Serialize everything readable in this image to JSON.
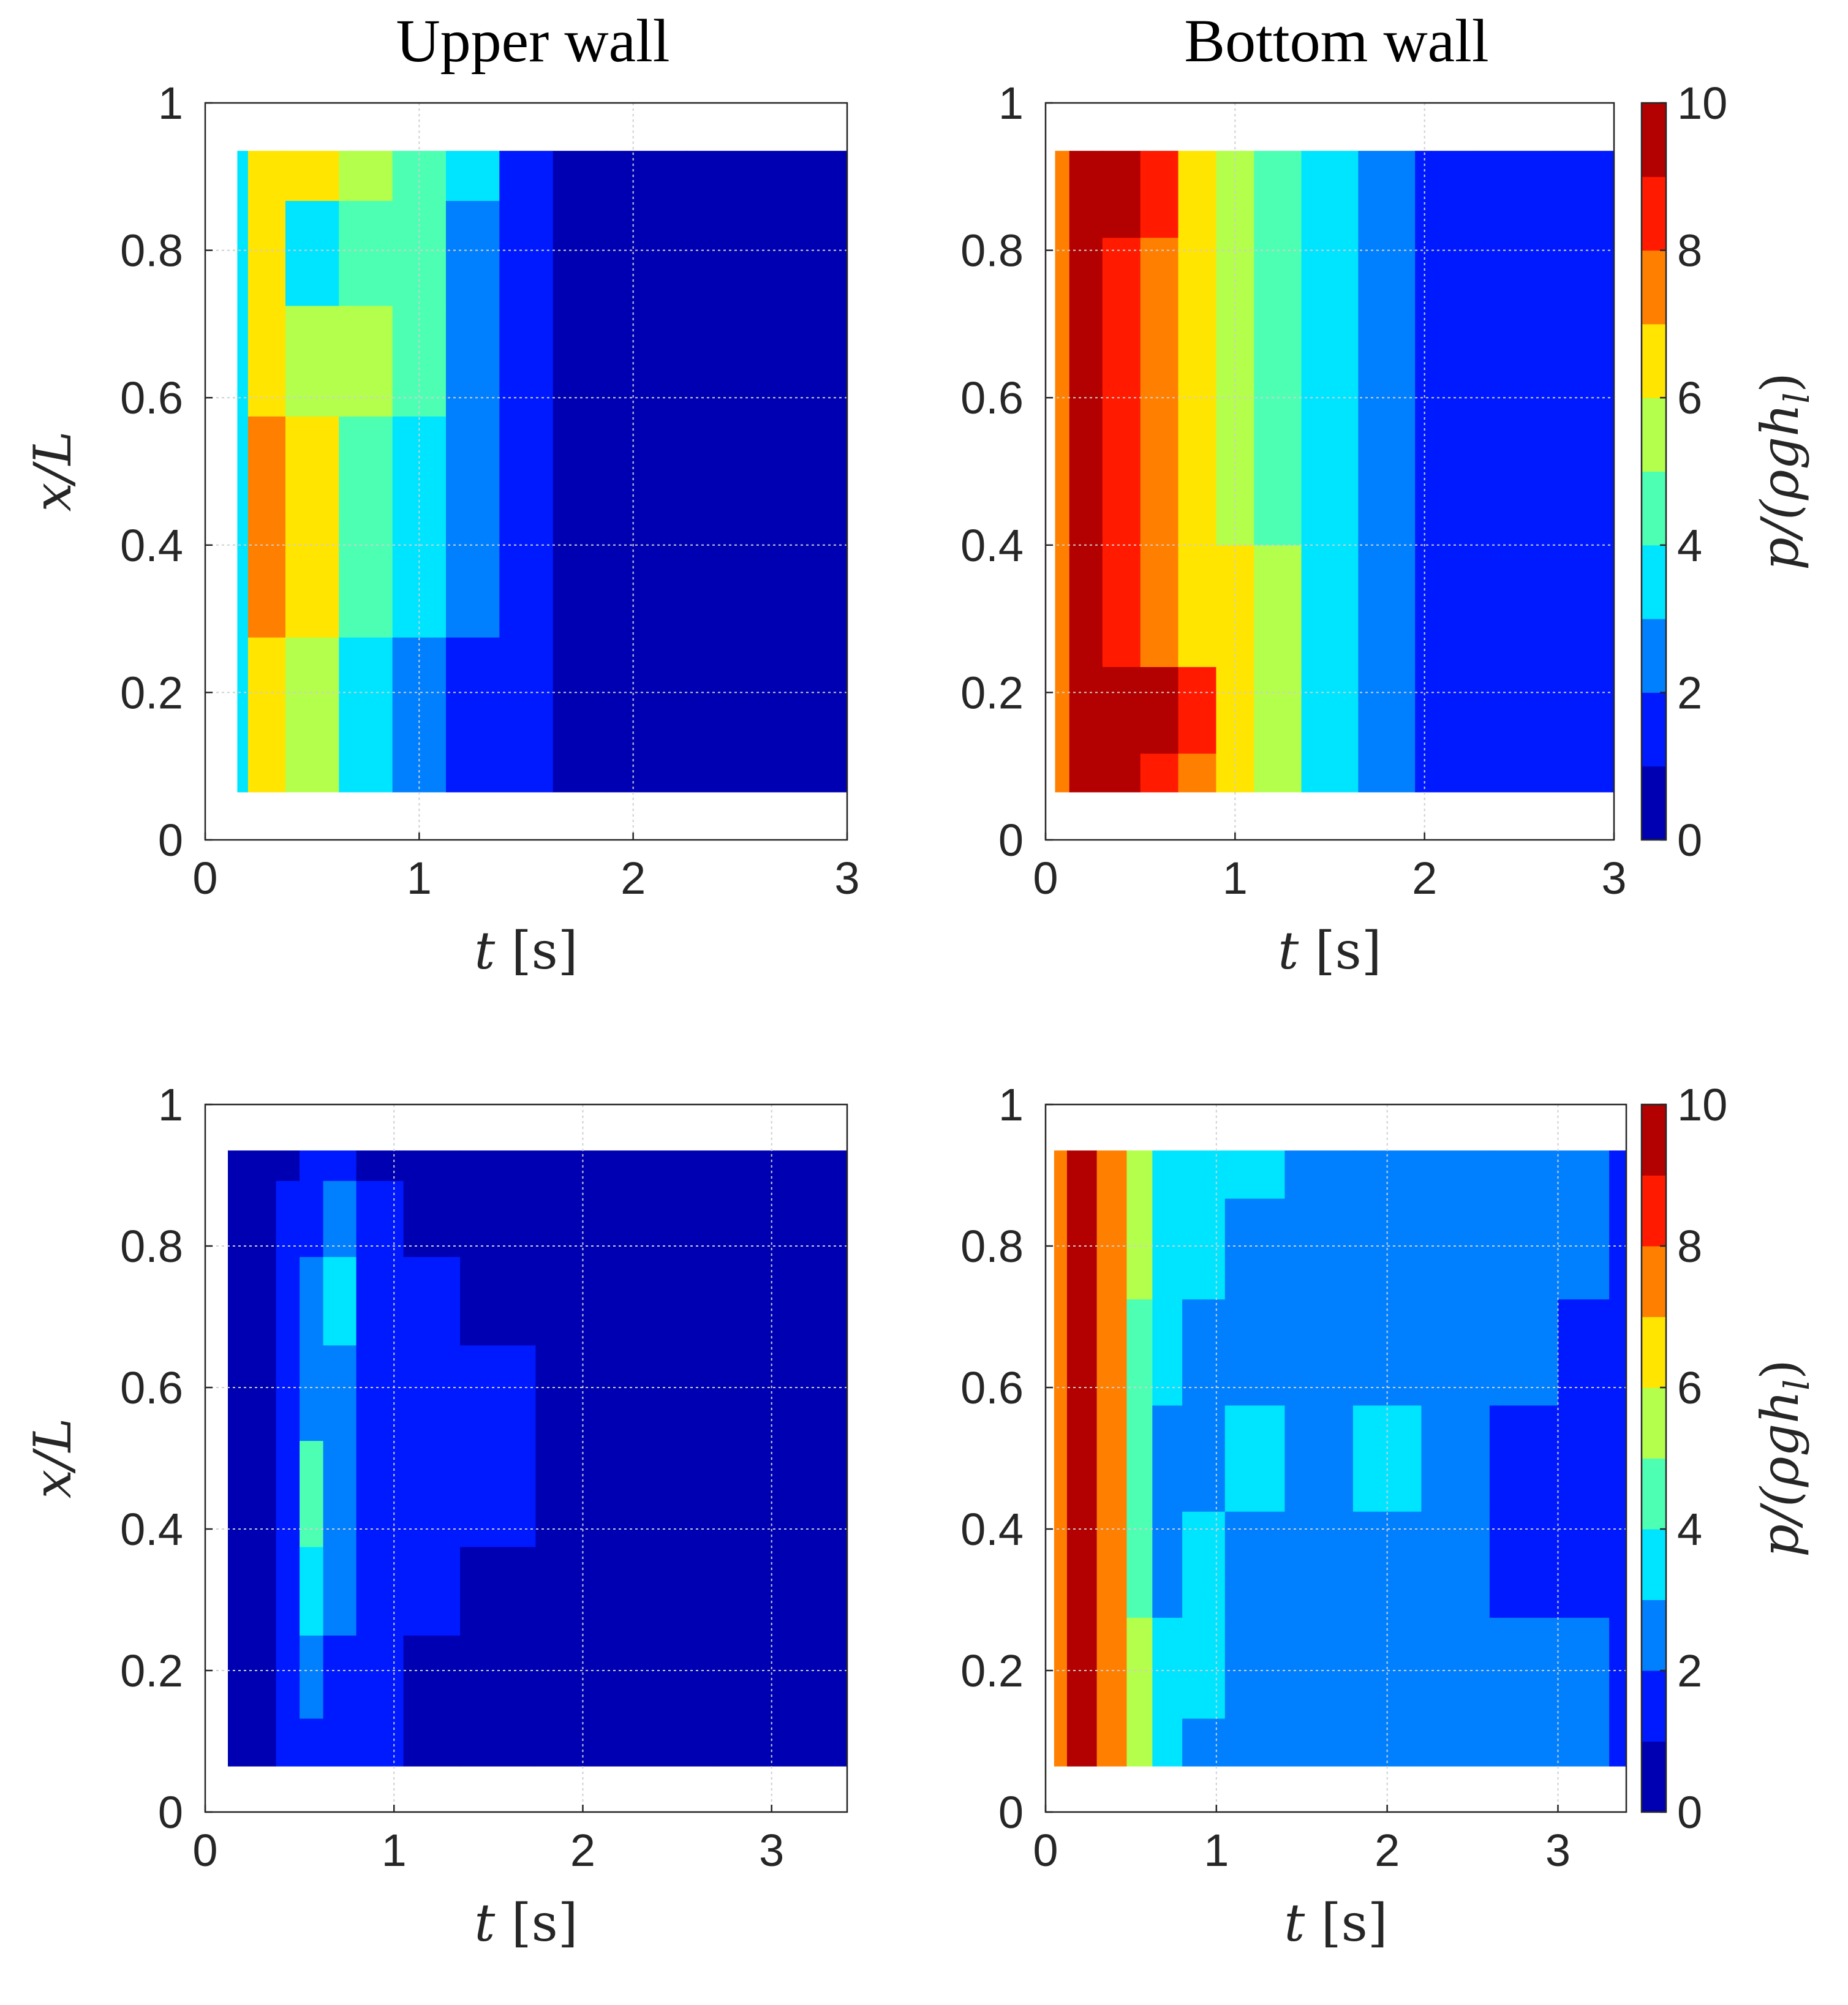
{
  "figure": {
    "col_titles": [
      "Upper wall",
      "Bottom wall"
    ]
  },
  "colorbar": {
    "label": "p/(ρgh_l)",
    "label_main": "p/(ρgh",
    "label_sub": "l",
    "label_close": ")",
    "ticks": [
      "0",
      "2",
      "4",
      "6",
      "8",
      "10"
    ],
    "range": [
      0,
      10
    ]
  },
  "chart_data": [
    {
      "type": "heatmap",
      "panel": "top-left",
      "title": "Upper wall",
      "xlabel": "t [s]",
      "ylabel": "x/L",
      "xlim": [
        0,
        3
      ],
      "ylim": [
        0,
        1
      ],
      "xticks": [
        "0",
        "1",
        "2",
        "3"
      ],
      "yticks": [
        "0",
        "0.2",
        "0.4",
        "0.6",
        "0.8",
        "1"
      ],
      "data_extent": {
        "t": [
          0.15,
          3.0
        ],
        "x": [
          0.065,
          0.935
        ]
      },
      "x": [
        0.15,
        0.25,
        0.5,
        0.75,
        1.0,
        1.25,
        1.5,
        1.75,
        2.0,
        2.5,
        3.0
      ],
      "y": [
        0.065,
        0.2,
        0.35,
        0.5,
        0.65,
        0.8,
        0.935
      ],
      "z": [
        [
          3,
          6,
          5,
          3,
          2,
          1,
          1,
          0.5,
          0.5,
          0,
          0
        ],
        [
          3,
          6,
          5,
          3,
          2,
          1,
          1,
          0.5,
          0,
          0,
          0
        ],
        [
          3,
          7,
          6,
          4,
          3,
          2,
          1,
          0.5,
          0,
          0,
          0
        ],
        [
          3,
          7,
          6,
          4,
          3,
          2,
          1,
          0.5,
          0,
          0,
          0
        ],
        [
          3,
          6,
          5.5,
          5,
          4,
          2,
          1,
          0.5,
          0,
          0,
          0
        ],
        [
          3,
          6,
          3.5,
          4,
          4,
          2,
          1,
          0.5,
          0,
          0,
          0
        ],
        [
          3,
          6,
          6,
          5,
          4,
          3,
          1,
          0.5,
          0,
          0,
          0
        ]
      ]
    },
    {
      "type": "heatmap",
      "panel": "top-right",
      "title": "Bottom wall",
      "xlabel": "t [s]",
      "ylabel": "",
      "xlim": [
        0,
        3
      ],
      "ylim": [
        0,
        1
      ],
      "xticks": [
        "0",
        "1",
        "2",
        "3"
      ],
      "yticks": [
        "0",
        "0.2",
        "0.4",
        "0.6",
        "0.8",
        "1"
      ],
      "data_extent": {
        "t": [
          0.05,
          3.0
        ],
        "x": [
          0.065,
          0.935
        ]
      },
      "x": [
        0.05,
        0.2,
        0.4,
        0.6,
        0.8,
        1.0,
        1.2,
        1.5,
        1.8,
        2.1,
        2.4,
        3.0
      ],
      "y": [
        0.065,
        0.17,
        0.3,
        0.5,
        0.7,
        0.935
      ],
      "z": [
        [
          7,
          9,
          9,
          8,
          7,
          6,
          5,
          3,
          2,
          1,
          1,
          1
        ],
        [
          7,
          9,
          10,
          9,
          8,
          6,
          5,
          3,
          2,
          1,
          1,
          1
        ],
        [
          7,
          9,
          8,
          7,
          6,
          6,
          5,
          3,
          2,
          1,
          1,
          1
        ],
        [
          7,
          9,
          8,
          7,
          6,
          5,
          4,
          3,
          2,
          1,
          1,
          1
        ],
        [
          7,
          9,
          8,
          7,
          6,
          5,
          4,
          3,
          2,
          1,
          1,
          1
        ],
        [
          7,
          10,
          9,
          8,
          6,
          5,
          4,
          3,
          2,
          1,
          1,
          1
        ]
      ]
    },
    {
      "type": "heatmap",
      "panel": "bottom-left",
      "title": "",
      "xlabel": "t [s]",
      "ylabel": "x/L",
      "xlim": [
        0,
        3.4
      ],
      "ylim": [
        0,
        1
      ],
      "xticks": [
        "0",
        "1",
        "2",
        "3"
      ],
      "yticks": [
        "0",
        "0.2",
        "0.4",
        "0.6",
        "0.8",
        "1"
      ],
      "data_extent": {
        "t": [
          0.12,
          3.4
        ],
        "x": [
          0.065,
          0.935
        ]
      },
      "x": [
        0.12,
        0.3,
        0.45,
        0.55,
        0.7,
        0.9,
        1.2,
        1.5,
        2.0,
        3.4
      ],
      "y": [
        0.065,
        0.2,
        0.3,
        0.45,
        0.6,
        0.72,
        0.85,
        0.935
      ],
      "z": [
        [
          0,
          0,
          1,
          1,
          1,
          1,
          0,
          0,
          0,
          0
        ],
        [
          0,
          0,
          1,
          2,
          1,
          1,
          0,
          0,
          0,
          0
        ],
        [
          0,
          0,
          1,
          3,
          2,
          1,
          1,
          0,
          0,
          0
        ],
        [
          0,
          0,
          1,
          4,
          2,
          1,
          1,
          1,
          0,
          0
        ],
        [
          0,
          0,
          1,
          2,
          2,
          1,
          1,
          1,
          0,
          0
        ],
        [
          0,
          0,
          1,
          2,
          3.5,
          1,
          1,
          0,
          0,
          0
        ],
        [
          0,
          0,
          1,
          1,
          2,
          1,
          0,
          0,
          0,
          0
        ],
        [
          0,
          0,
          0,
          1,
          1,
          0,
          0,
          0,
          0,
          0
        ]
      ]
    },
    {
      "type": "heatmap",
      "panel": "bottom-right",
      "title": "",
      "xlabel": "t [s]",
      "ylabel": "",
      "xlim": [
        0,
        3.4
      ],
      "ylim": [
        0,
        1
      ],
      "xticks": [
        "0",
        "1",
        "2",
        "3"
      ],
      "yticks": [
        "0",
        "0.2",
        "0.4",
        "0.6",
        "0.8",
        "1"
      ],
      "data_extent": {
        "t": [
          0.05,
          3.4
        ],
        "x": [
          0.065,
          0.935
        ]
      },
      "x": [
        0.05,
        0.2,
        0.4,
        0.55,
        0.7,
        0.9,
        1.2,
        1.6,
        2.0,
        2.4,
        2.8,
        3.2,
        3.4
      ],
      "y": [
        0.065,
        0.2,
        0.35,
        0.5,
        0.65,
        0.8,
        0.935
      ],
      "z": [
        [
          7,
          9,
          7,
          5,
          3,
          2,
          2,
          2,
          2,
          2,
          2,
          2,
          1
        ],
        [
          7,
          9,
          7,
          5,
          3,
          3,
          2,
          2,
          2,
          2,
          2,
          2,
          1
        ],
        [
          7,
          9,
          7,
          4,
          2,
          3,
          2,
          2,
          2,
          2,
          1,
          1,
          1
        ],
        [
          7,
          9,
          7,
          4,
          2,
          2,
          3,
          2,
          3,
          2,
          1,
          1,
          1
        ],
        [
          7,
          9,
          7,
          4,
          3,
          2,
          2,
          2,
          2,
          2,
          2,
          1,
          1
        ],
        [
          7,
          9,
          7,
          5,
          3,
          3,
          2,
          2,
          2,
          2,
          2,
          2,
          1
        ],
        [
          7,
          9,
          7,
          5,
          3,
          3,
          3,
          2,
          2,
          2,
          2,
          2,
          1
        ]
      ]
    }
  ]
}
